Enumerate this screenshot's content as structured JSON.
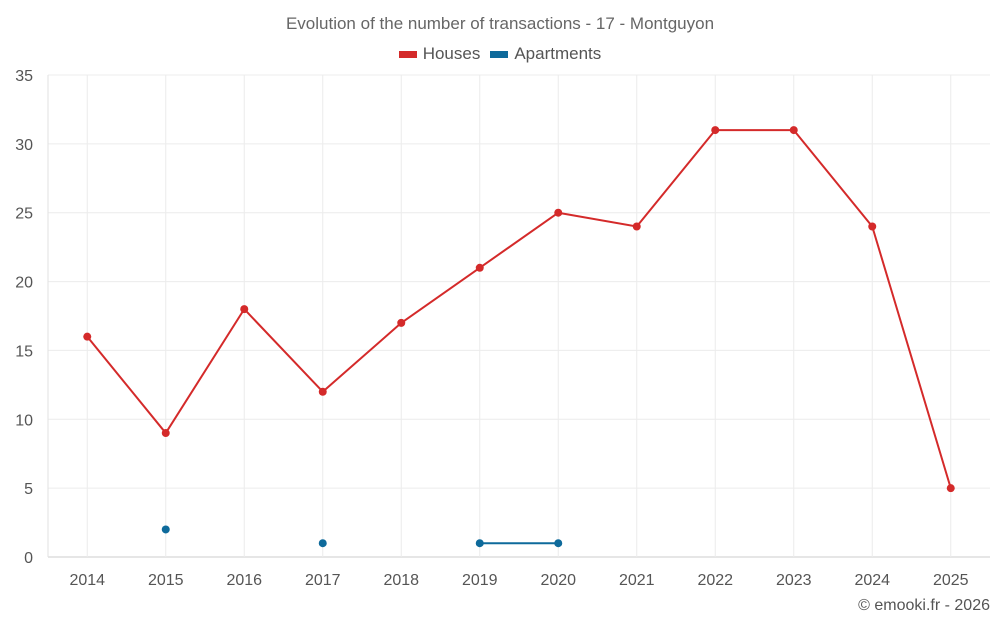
{
  "chart_data": {
    "type": "line",
    "title": "Evolution of the number of transactions - 17 - Montguyon",
    "x": [
      "2014",
      "2015",
      "2016",
      "2017",
      "2018",
      "2019",
      "2020",
      "2021",
      "2022",
      "2023",
      "2024",
      "2025"
    ],
    "ylim": [
      0,
      35
    ],
    "yticks": [
      0,
      5,
      10,
      15,
      20,
      25,
      30,
      35
    ],
    "grid": true,
    "legend_position": "top-center",
    "series": [
      {
        "name": "Houses",
        "color": "#d42a2a",
        "values": [
          16,
          9,
          18,
          12,
          17,
          21,
          25,
          24,
          31,
          31,
          24,
          5
        ]
      },
      {
        "name": "Apartments",
        "color": "#0e6a9b",
        "values": [
          null,
          2,
          null,
          1,
          null,
          1,
          1,
          null,
          null,
          null,
          null,
          null
        ]
      }
    ]
  },
  "credit": "© emooki.fr - 2026"
}
